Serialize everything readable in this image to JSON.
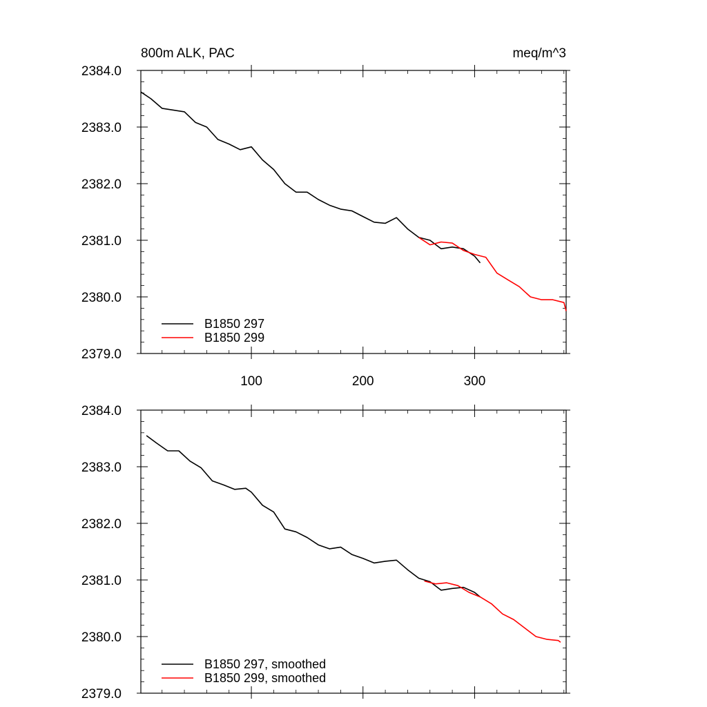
{
  "chart_data": [
    {
      "type": "line",
      "title": "800m ALK, PAC",
      "units": "meq/m^3",
      "xlim": [
        1,
        382
      ],
      "ylim": [
        2379.0,
        2384.0
      ],
      "x_ticks": [
        100,
        200,
        300
      ],
      "y_ticks": [
        2379.0,
        2380.0,
        2381.0,
        2382.0,
        2383.0,
        2384.0
      ],
      "y_tick_labels": [
        "2379.0",
        "2380.0",
        "2381.0",
        "2382.0",
        "2383.0",
        "2384.0"
      ],
      "legend": "bottom-left",
      "grid": false,
      "series": [
        {
          "name": "B1850 297",
          "color": "#000000",
          "x": [
            1,
            10,
            20,
            30,
            40,
            50,
            60,
            70,
            80,
            90,
            100,
            110,
            120,
            130,
            140,
            150,
            160,
            170,
            180,
            190,
            200,
            210,
            220,
            230,
            240,
            250,
            260,
            270,
            280,
            290,
            300,
            305
          ],
          "y": [
            2383.62,
            2383.5,
            2383.33,
            2383.3,
            2383.27,
            2383.08,
            2383.0,
            2382.78,
            2382.7,
            2382.6,
            2382.65,
            2382.42,
            2382.25,
            2382.0,
            2381.85,
            2381.85,
            2381.72,
            2381.62,
            2381.55,
            2381.52,
            2381.42,
            2381.32,
            2381.3,
            2381.4,
            2381.2,
            2381.05,
            2381.0,
            2380.85,
            2380.88,
            2380.85,
            2380.72,
            2380.6
          ]
        },
        {
          "name": "B1850 299",
          "color": "#ff0000",
          "x": [
            250,
            260,
            270,
            280,
            290,
            300,
            310,
            320,
            330,
            340,
            350,
            360,
            370,
            380,
            382
          ],
          "y": [
            2381.05,
            2380.92,
            2380.97,
            2380.95,
            2380.82,
            2380.75,
            2380.7,
            2380.42,
            2380.3,
            2380.18,
            2380.0,
            2379.95,
            2379.95,
            2379.9,
            2379.75
          ]
        }
      ]
    },
    {
      "type": "line",
      "xlim": [
        1,
        382
      ],
      "ylim": [
        2379.0,
        2384.0
      ],
      "x_ticks": [
        100,
        200,
        300
      ],
      "y_ticks": [
        2379.0,
        2380.0,
        2381.0,
        2382.0,
        2383.0,
        2384.0
      ],
      "y_tick_labels": [
        "2379.0",
        "2380.0",
        "2381.0",
        "2382.0",
        "2383.0",
        "2384.0"
      ],
      "legend": "bottom-left",
      "grid": false,
      "series": [
        {
          "name": "B1850 297, smoothed",
          "color": "#000000",
          "x": [
            6,
            15,
            25,
            35,
            45,
            55,
            65,
            75,
            85,
            95,
            100,
            110,
            120,
            130,
            140,
            150,
            160,
            170,
            180,
            190,
            200,
            210,
            220,
            230,
            240,
            250,
            260,
            270,
            280,
            290,
            300,
            305
          ],
          "y": [
            2383.55,
            2383.42,
            2383.28,
            2383.28,
            2383.1,
            2382.98,
            2382.75,
            2382.68,
            2382.6,
            2382.62,
            2382.55,
            2382.32,
            2382.2,
            2381.9,
            2381.85,
            2381.75,
            2381.62,
            2381.55,
            2381.58,
            2381.45,
            2381.38,
            2381.3,
            2381.33,
            2381.35,
            2381.18,
            2381.03,
            2380.97,
            2380.82,
            2380.85,
            2380.87,
            2380.78,
            2380.7
          ]
        },
        {
          "name": "B1850 299, smoothed",
          "color": "#ff0000",
          "x": [
            255,
            265,
            275,
            285,
            295,
            305,
            315,
            325,
            335,
            345,
            355,
            365,
            375,
            377
          ],
          "y": [
            2380.98,
            2380.93,
            2380.95,
            2380.9,
            2380.78,
            2380.7,
            2380.58,
            2380.4,
            2380.3,
            2380.15,
            2380.0,
            2379.95,
            2379.93,
            2379.9
          ]
        }
      ]
    }
  ]
}
